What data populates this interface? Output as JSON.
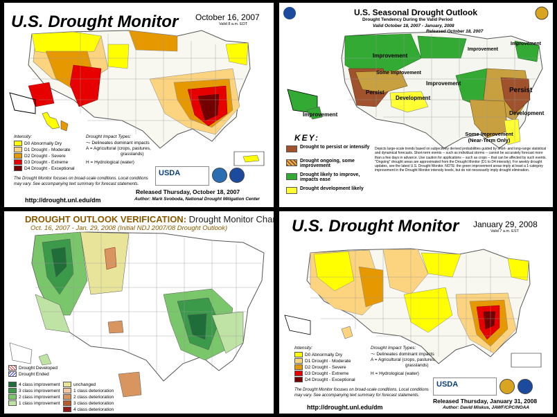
{
  "panel1": {
    "title": "U.S. Drought Monitor",
    "date": "October 16, 2007",
    "valid": "Valid 8 a.m. EDT",
    "intensity_title": "Intensity:",
    "intensity": [
      {
        "label": "D0 Abnormally Dry",
        "color": "#ffff00"
      },
      {
        "label": "D1 Drought - Moderate",
        "color": "#fcd37f"
      },
      {
        "label": "D2 Drought - Severe",
        "color": "#e69800"
      },
      {
        "label": "D3 Drought - Extreme",
        "color": "#e60000"
      },
      {
        "label": "D4 Drought - Exceptional",
        "color": "#730000"
      }
    ],
    "impact_title": "Drought Impact Types:",
    "impacts": [
      "Delineates dominant impacts",
      "A = Agricultural (crops, pastures,",
      "grasslands)",
      "H = Hydrological (water)"
    ],
    "note": "The Drought Monitor focuses on broad-scale conditions. Local conditions may vary. See accompanying text summary for forecast statements.",
    "released": "Released Thursday, October 18, 2007",
    "author": "Author:  Mark Svoboda, National Drought Mitigation Center",
    "url": "http://drought.unl.edu/dm",
    "usda": "USDA"
  },
  "panel2": {
    "title": "U.S. Seasonal Drought Outlook",
    "subtitle": "Drought Tendency During the Valid Period",
    "valid": "Valid October 18, 2007 - January, 2008",
    "released": "Released October 18, 2007",
    "map_labels": [
      "Improvement",
      "Improvement",
      "Improvement",
      "Some Improvement",
      "Improvement",
      "Persist",
      "Development",
      "Persist",
      "Development",
      "Improvement",
      "Some Improvement (Near-Term Only)"
    ],
    "key_title": "KEY:",
    "key": [
      {
        "label": "Drought to persist or intensify",
        "color": "#a0522d"
      },
      {
        "label": "Drought ongoing, some improvement",
        "color": "#c8a040"
      },
      {
        "label": "Drought likely to improve, impacts ease",
        "color": "#33aa33"
      },
      {
        "label": "Drought development likely",
        "color": "#ffff33"
      }
    ],
    "note": "Depicts large-scale trends based on subjectively derived probabilities guided by short- and long-range statistical and dynamical forecasts. Short-term events -- such as individual storms -- cannot be accurately forecast more than a few days in advance. Use caution for applications -- such as crops -- that can be affected by such events. \"Ongoing\" drought areas are approximated from the Drought Monitor (D1 to D4 intensity). For weekly drought updates, see the latest U.S. Drought Monitor. NOTE: the green improvement areas imply at least a 1-category improvement in the Drought Monitor intensity levels, but do not necessarily imply drought elimination."
  },
  "panel3": {
    "title_a": "DROUGHT OUTLOOK VERIFICATION:",
    "title_b": "Drought Monitor Change",
    "subtitle": "Oct. 16, 2007 - Jan. 29, 2008 (Initial NDJ 2007/08 Drought Outlook)",
    "hatch_legend": [
      "Drought Developed",
      "Drought Ended"
    ],
    "change_left": [
      {
        "label": "4 class improvement",
        "color": "#1f6e3a"
      },
      {
        "label": "3 class improvement",
        "color": "#3a9a4a"
      },
      {
        "label": "2 class improvement",
        "color": "#7ac66a"
      },
      {
        "label": "1 class improvement",
        "color": "#bfe3a5"
      }
    ],
    "change_right": [
      {
        "label": "unchanged",
        "color": "#e8e49a"
      },
      {
        "label": "1 class deterioration",
        "color": "#f1c7a3"
      },
      {
        "label": "2 class deterioration",
        "color": "#d8955f"
      },
      {
        "label": "3 class deterioration",
        "color": "#b85a2e"
      },
      {
        "label": "4 class deterioration",
        "color": "#8e1c1c"
      }
    ]
  },
  "panel4": {
    "title": "U.S. Drought Monitor",
    "date": "January 29, 2008",
    "valid": "Valid 7 a.m. EST",
    "intensity_title": "Intensity:",
    "intensity": [
      {
        "label": "D0 Abnormally Dry",
        "color": "#ffff00"
      },
      {
        "label": "D1 Drought - Moderate",
        "color": "#fcd37f"
      },
      {
        "label": "D2 Drought - Severe",
        "color": "#e69800"
      },
      {
        "label": "D3 Drought - Extreme",
        "color": "#e60000"
      },
      {
        "label": "D4 Drought - Exceptional",
        "color": "#730000"
      }
    ],
    "impact_title": "Drought Impact Types:",
    "impacts": [
      "Delineates dominant impacts",
      "A = Agricultural (crops, pastures,",
      "grasslands)",
      "H = Hydrological (water)"
    ],
    "note": "The Drought Monitor focuses on broad-scale conditions. Local conditions may vary. See accompanying text summary for forecast statements.",
    "released": "Released Thursday, January 31, 2008",
    "author": "Author:  David Miskus, JAWF/CPC/NOAA",
    "url": "http://drought.unl.edu/dm",
    "usda": "USDA"
  }
}
